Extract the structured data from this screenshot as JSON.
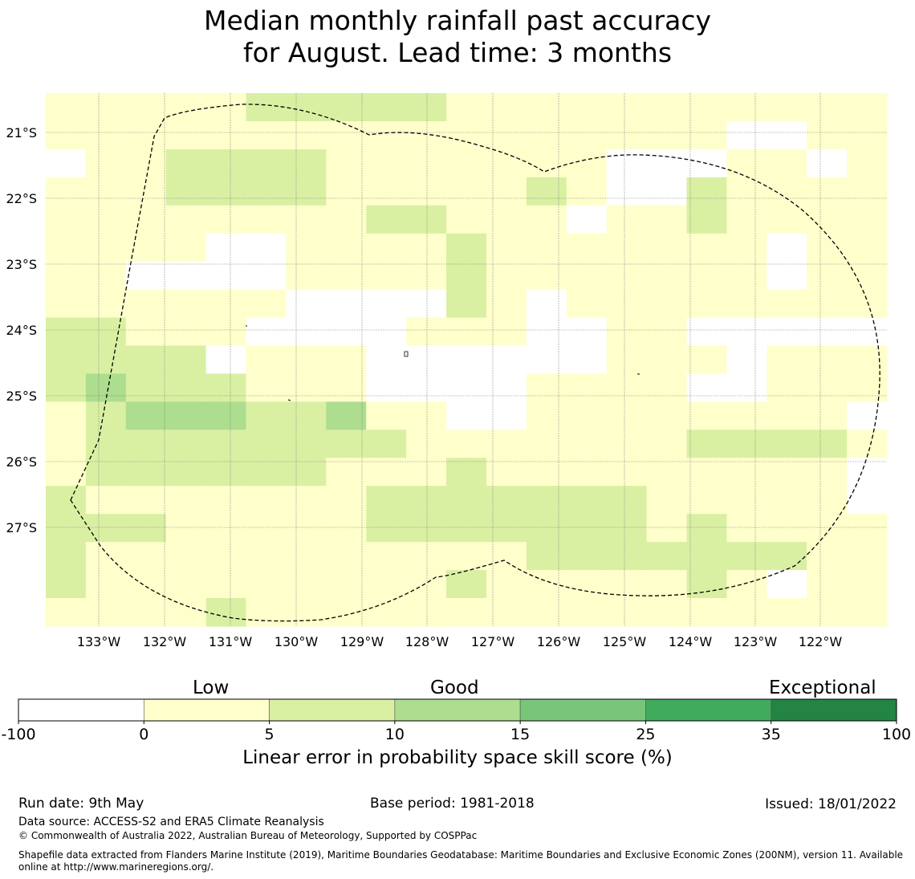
{
  "title": {
    "line1": "Median monthly rainfall past accuracy",
    "line2": "for August. Lead time: 3 months"
  },
  "map": {
    "lat_labels": [
      "21°S",
      "22°S",
      "23°S",
      "24°S",
      "25°S",
      "26°S",
      "27°S"
    ],
    "lon_labels": [
      "133°W",
      "132°W",
      "131°W",
      "130°W",
      "129°W",
      "128°W",
      "127°W",
      "126°W",
      "125°W",
      "124°W",
      "123°W",
      "122°W"
    ],
    "class_colors": [
      "#ffffff",
      "#ffffcc",
      "#d9f0a3",
      "#addd8e",
      "#78c679",
      "#41ab5d",
      "#238443"
    ],
    "grid_rows": [
      "111112222211111111111",
      "111111111111111110011",
      "011222211111110001101",
      "111222211111210021111",
      "111111112211101121111",
      "111100111121111111011",
      "110000111121111111011",
      "111111000021011111111",
      "221110000111001100000",
      "222201110000001110111",
      "232221110000111100111",
      "123332231100111111110",
      "122222222111111122221",
      "122222211121111111110",
      "211111112222222111110",
      "222111112222222121111",
      "211111111111222222211",
      "211111111121111121011",
      "111121111111111111111"
    ],
    "boundary_color": "#000000"
  },
  "colorbar": {
    "category_labels": [
      "Low",
      "Good",
      "Exceptional"
    ],
    "tick_labels": [
      "-100",
      "0",
      "5",
      "10",
      "15",
      "25",
      "35",
      "100"
    ],
    "xlabel": "Linear error in probability space skill score (%)"
  },
  "footer": {
    "run_date": "Run date: 9th May",
    "base_period": "Base period: 1981-2018",
    "issued": "Issued: 18/01/2022",
    "data_source": "Data source: ACCESS-S2 and ERA5 Climate Reanalysis",
    "copyright": "© Commonwealth of Australia 2022, Australian Bureau of Meteorology, Supported by COSPPac",
    "shapefile_line1": "Shapefile data extracted from Flanders Marine Institute (2019), Maritime Boundaries Geodatabase: Maritime Boundaries and Exclusive Economic Zones (200NM), version 11. Available",
    "shapefile_line2": "online at http://www.marineregions.org/."
  }
}
